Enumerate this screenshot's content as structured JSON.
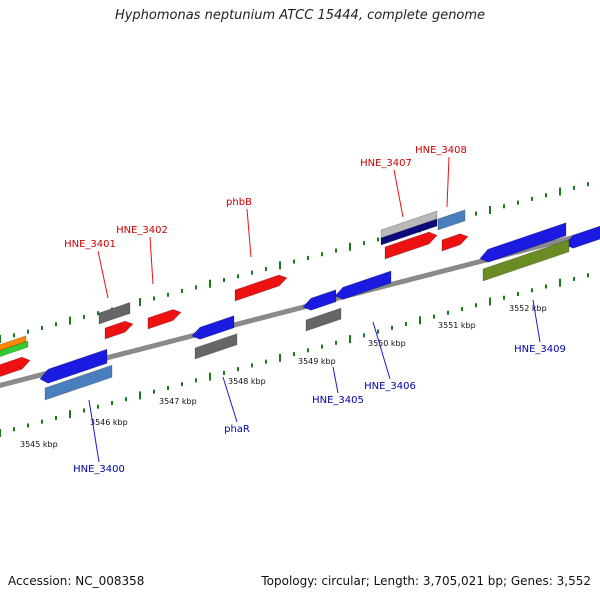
{
  "title": "Hyphomonas neptunium ATCC 15444, complete genome",
  "footer": {
    "accession": "Accession: NC_008358",
    "topology": "Topology: circular; Length: 3,705,021 bp; Genes: 3,552"
  },
  "scale_labels": [
    "3545 kbp",
    "3546 kbp",
    "3547 kbp",
    "3548 kbp",
    "3549 kbp",
    "3550 kbp",
    "3551 kbp",
    "3552 kbp"
  ],
  "top_gene_labels": [
    "HNE_3401",
    "HNE_3402",
    "phbB",
    "HNE_3407",
    "HNE_3408"
  ],
  "bottom_gene_labels": [
    "HNE_3400",
    "phaR",
    "HNE_3405",
    "HNE_3406",
    "HNE_3409"
  ],
  "colors": {
    "red": "#ee1111",
    "blue": "#1a1ae0",
    "steel": "#4a7fbf",
    "gray": "#666666",
    "olive": "#6b8c23",
    "navy": "#0a0a7a",
    "silver": "#b8b8b8",
    "orange": "#ff8800",
    "green": "#33cc33",
    "backbone": "#8a8a8a",
    "tick": "#1a7a1a"
  }
}
